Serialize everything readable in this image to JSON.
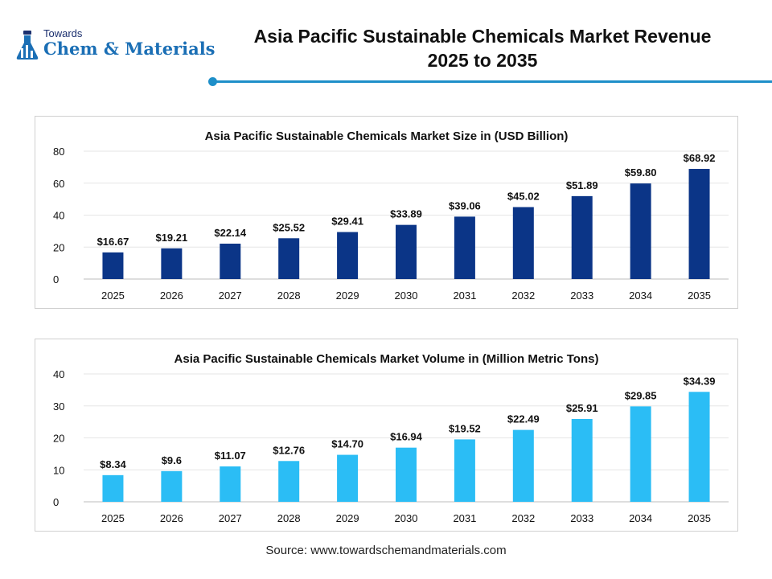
{
  "header": {
    "logo_line1": "Towards",
    "logo_line2": "Chem & Materials",
    "title_line1": "Asia Pacific Sustainable Chemicals Market Revenue",
    "title_line2": "2025 to 2035",
    "accent_color": "#1e8fc9"
  },
  "chart_data": [
    {
      "type": "bar",
      "title": "Asia Pacific Sustainable Chemicals Market Size in (USD Billion)",
      "xlabel": "",
      "ylabel": "",
      "categories": [
        "2025",
        "2026",
        "2027",
        "2028",
        "2029",
        "2030",
        "2031",
        "2032",
        "2033",
        "2034",
        "2035"
      ],
      "values": [
        16.67,
        19.21,
        22.14,
        25.52,
        29.41,
        33.89,
        39.06,
        45.02,
        51.89,
        59.8,
        68.92
      ],
      "data_labels": [
        "$16.67",
        "$19.21",
        "$22.14",
        "$25.52",
        "$29.41",
        "$33.89",
        "$39.06",
        "$45.02",
        "$51.89",
        "$59.80",
        "$68.92"
      ],
      "ylim": [
        0,
        80
      ],
      "yticks": [
        0,
        20,
        40,
        60,
        80
      ],
      "grid": true,
      "legend": "none",
      "bar_color": "#0b3587"
    },
    {
      "type": "bar",
      "title": "Asia Pacific Sustainable Chemicals Market Volume in (Million Metric Tons)",
      "xlabel": "",
      "ylabel": "",
      "categories": [
        "2025",
        "2026",
        "2027",
        "2028",
        "2029",
        "2030",
        "2031",
        "2032",
        "2033",
        "2034",
        "2035"
      ],
      "values": [
        8.34,
        9.6,
        11.07,
        12.76,
        14.7,
        16.94,
        19.52,
        22.49,
        25.91,
        29.85,
        34.39
      ],
      "data_labels": [
        "$8.34",
        "$9.6",
        "$11.07",
        "$12.76",
        "$14.70",
        "$16.94",
        "$19.52",
        "$22.49",
        "$25.91",
        "$29.85",
        "$34.39"
      ],
      "ylim": [
        0,
        40
      ],
      "yticks": [
        0,
        10,
        20,
        30,
        40
      ],
      "grid": true,
      "legend": "none",
      "bar_color": "#2bbdf5"
    }
  ],
  "footer": {
    "source": "Source: www.towardschemandmaterials.com"
  }
}
